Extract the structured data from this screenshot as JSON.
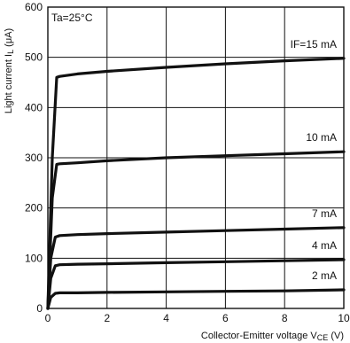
{
  "chart_data": {
    "type": "line",
    "xlabel": "Collector-Emitter voltage V",
    "xlabel_sub": "CE",
    "xlabel_unit": " (V)",
    "ylabel": "Light current I",
    "ylabel_sub": "L",
    "ylabel_unit": " (μA)",
    "annotation": "Ta=25°C",
    "xlim": [
      0,
      10
    ],
    "ylim": [
      0,
      600
    ],
    "xticks": [
      {
        "value": 0,
        "label": "0"
      },
      {
        "value": 2,
        "label": "2"
      },
      {
        "value": 4,
        "label": "4"
      },
      {
        "value": 6,
        "label": "6"
      },
      {
        "value": 8,
        "label": "8"
      },
      {
        "value": 10,
        "label": "10"
      }
    ],
    "yticks": [
      {
        "value": 0,
        "label": "0"
      },
      {
        "value": 100,
        "label": "100"
      },
      {
        "value": 200,
        "label": "200"
      },
      {
        "value": 300,
        "label": "300"
      },
      {
        "value": 400,
        "label": "400"
      },
      {
        "value": 500,
        "label": "500"
      },
      {
        "value": 600,
        "label": "600"
      }
    ],
    "grid": true,
    "series": [
      {
        "name": "IF=15 mA",
        "x": [
          0,
          0.15,
          0.3,
          0.4,
          1,
          2,
          4,
          6,
          8,
          10
        ],
        "y": [
          0,
          300,
          460,
          462,
          467,
          472,
          480,
          487,
          493,
          498
        ]
      },
      {
        "name": "10 mA",
        "x": [
          0,
          0.15,
          0.3,
          0.4,
          1,
          2,
          4,
          6,
          8,
          10
        ],
        "y": [
          0,
          220,
          287,
          288,
          290,
          294,
          300,
          304,
          308,
          312
        ]
      },
      {
        "name": "7 mA",
        "x": [
          0,
          0.1,
          0.25,
          0.4,
          1,
          2,
          4,
          6,
          8,
          10
        ],
        "y": [
          0,
          100,
          142,
          145,
          147,
          149,
          152,
          155,
          158,
          161
        ]
      },
      {
        "name": "4 mA",
        "x": [
          0,
          0.1,
          0.25,
          0.4,
          1,
          2,
          4,
          6,
          8,
          10
        ],
        "y": [
          0,
          60,
          85,
          87,
          88,
          89,
          91,
          93,
          95,
          97
        ]
      },
      {
        "name": "2 mA",
        "x": [
          0,
          0.1,
          0.25,
          0.4,
          1,
          2,
          4,
          6,
          8,
          10
        ],
        "y": [
          0,
          22,
          30,
          31,
          31,
          32,
          33,
          34,
          35,
          37
        ]
      }
    ],
    "series_label_font_size_note": ""
  },
  "colors": {
    "line": "#111111",
    "grid": "#111111",
    "background": "#ffffff"
  }
}
